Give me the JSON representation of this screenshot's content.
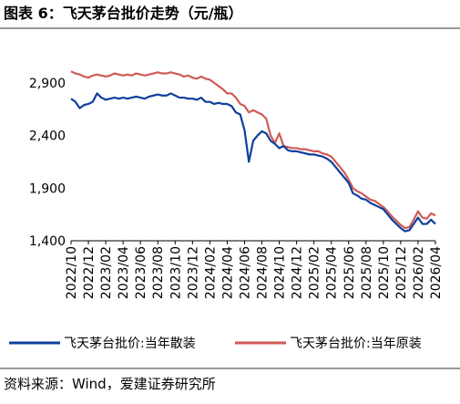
{
  "chart_data": {
    "type": "line",
    "title": "图表 6：飞天茅台批价走势（元/瓶）",
    "source": "资料来源：Wind，爱建证券研究所",
    "categories": [
      "2022/10",
      null,
      null,
      null,
      "2022/12",
      null,
      null,
      null,
      "2023/02",
      null,
      null,
      null,
      "2023/04",
      null,
      null,
      null,
      "2023/06",
      null,
      null,
      null,
      "2023/08",
      null,
      null,
      null,
      "2023/10",
      null,
      null,
      null,
      "2023/12",
      null,
      null,
      null,
      "2024/02",
      null,
      null,
      null,
      "2024/04",
      null,
      null,
      null,
      "2024/06",
      null,
      null,
      null,
      "2024/08",
      null,
      null,
      null,
      "2024/10",
      null,
      null,
      null,
      "2024/12",
      null,
      null,
      null,
      "2025/02",
      null,
      null,
      null,
      "2025/04",
      null,
      null,
      null,
      "2025/06",
      null,
      null,
      null,
      "2025/08",
      null,
      null,
      null,
      "2025/10",
      null,
      null,
      null,
      "2025/12",
      null,
      null,
      null,
      "2026/02",
      null,
      null,
      null,
      "2026/04"
    ],
    "series": [
      {
        "name": "飞天茅台批价:当年散装",
        "color": "#0e3f9e",
        "values": [
          2750,
          2720,
          2660,
          2690,
          2700,
          2720,
          2800,
          2760,
          2740,
          2750,
          2760,
          2750,
          2760,
          2750,
          2760,
          2770,
          2760,
          2750,
          2770,
          2780,
          2790,
          2780,
          2780,
          2800,
          2780,
          2760,
          2760,
          2750,
          2750,
          2740,
          2760,
          2720,
          2720,
          2700,
          2710,
          2700,
          2700,
          2680,
          2620,
          2600,
          2450,
          2150,
          2350,
          2400,
          2440,
          2420,
          2350,
          2320,
          2280,
          2300,
          2260,
          2250,
          2250,
          2240,
          2230,
          2220,
          2220,
          2210,
          2200,
          2180,
          2150,
          2100,
          2050,
          2000,
          1950,
          1850,
          1830,
          1800,
          1790,
          1760,
          1740,
          1720,
          1700,
          1650,
          1600,
          1560,
          1520,
          1490,
          1500,
          1560,
          1620,
          1560,
          1560,
          1600,
          1560
        ]
      },
      {
        "name": "飞天茅台批价:当年原装",
        "color": "#d05a55",
        "values": [
          3010,
          2990,
          2980,
          2960,
          2950,
          2970,
          2980,
          2970,
          2960,
          2970,
          2990,
          2980,
          2970,
          2980,
          2970,
          2990,
          2980,
          2970,
          2980,
          2990,
          3000,
          2990,
          2990,
          3000,
          2990,
          2980,
          2960,
          2970,
          2950,
          2940,
          2960,
          2940,
          2930,
          2900,
          2870,
          2840,
          2800,
          2800,
          2760,
          2700,
          2680,
          2620,
          2640,
          2620,
          2600,
          2560,
          2400,
          2330,
          2420,
          2300,
          2290,
          2280,
          2280,
          2270,
          2270,
          2260,
          2250,
          2250,
          2230,
          2220,
          2200,
          2150,
          2100,
          2050,
          1980,
          1900,
          1870,
          1850,
          1820,
          1790,
          1780,
          1750,
          1720,
          1680,
          1630,
          1590,
          1550,
          1520,
          1530,
          1600,
          1680,
          1620,
          1610,
          1660,
          1640
        ]
      }
    ],
    "ylim": [
      1400,
      3100
    ],
    "yticks": [
      {
        "value": 1400,
        "label": "1,400"
      },
      {
        "value": 1900,
        "label": "1,900"
      },
      {
        "value": 2400,
        "label": "2,400"
      },
      {
        "value": 2900,
        "label": "2,900"
      }
    ]
  }
}
